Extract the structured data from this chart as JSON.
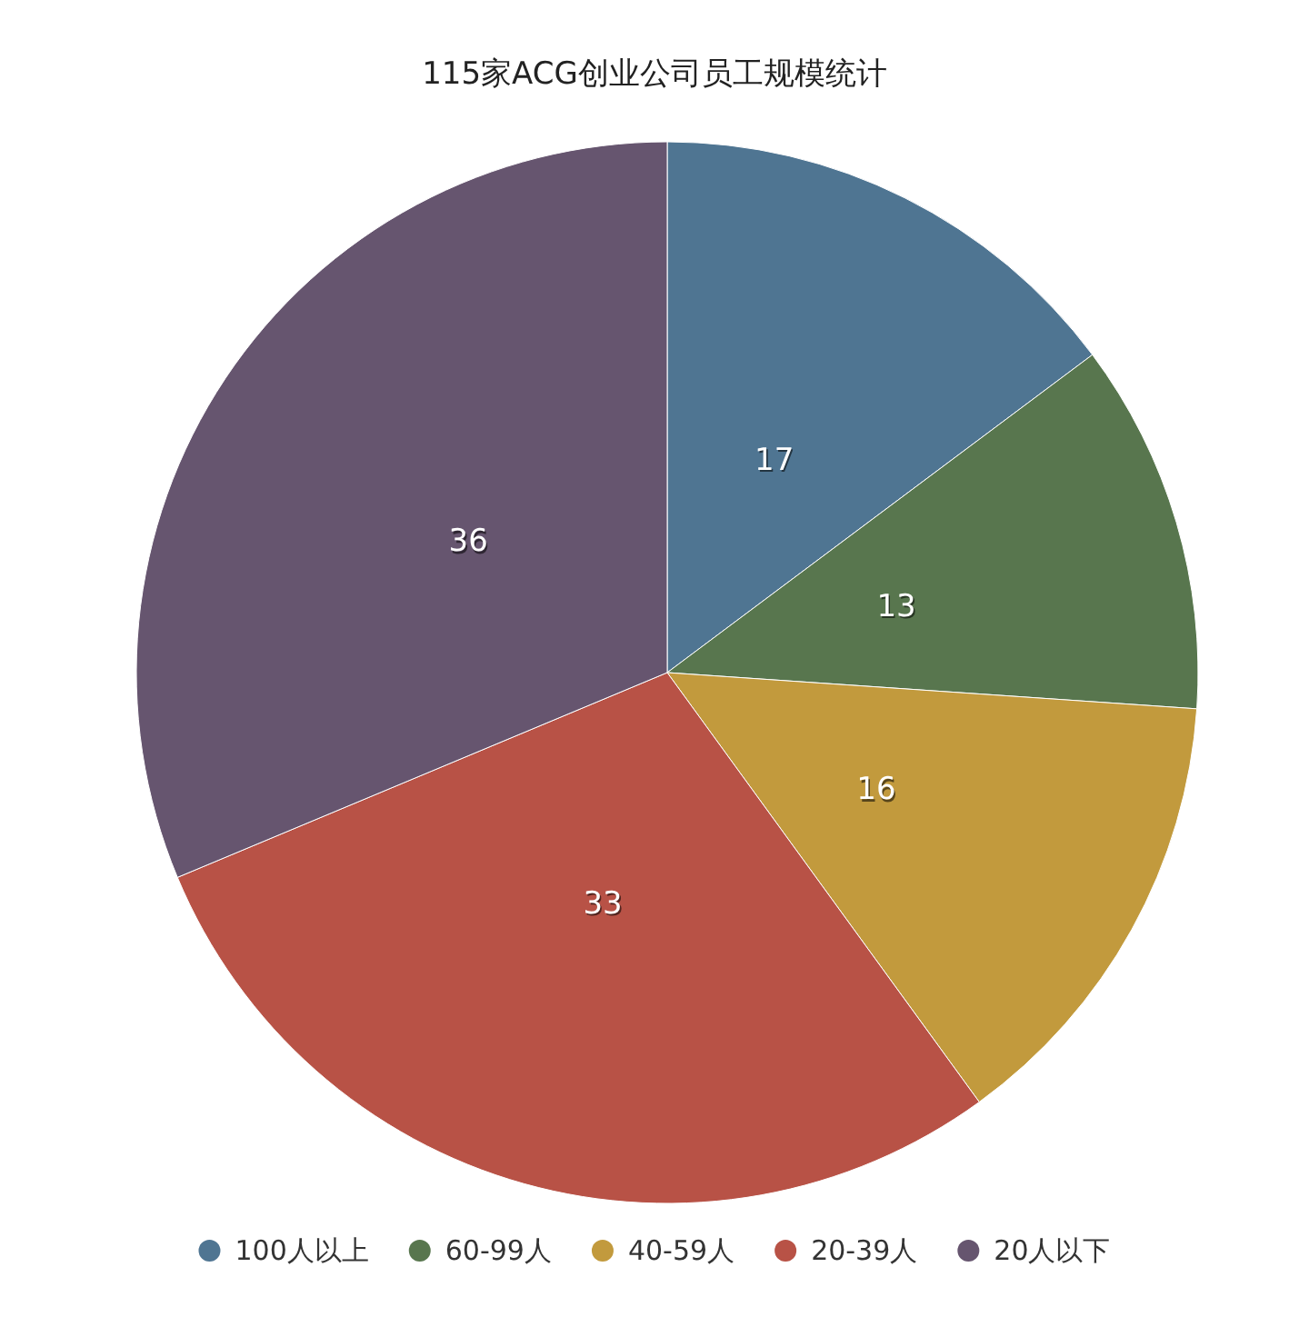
{
  "chart_data": {
    "type": "pie",
    "title": "115家ACG创业公司员工规模统计",
    "categories": [
      "100人以上",
      "60-99人",
      "40-59人",
      "20-39人",
      "20人以下"
    ],
    "values": [
      17,
      13,
      16,
      33,
      36
    ],
    "colors": [
      "#4f7592",
      "#58764e",
      "#c29a3d",
      "#b85246",
      "#66556f"
    ],
    "data_labels": true,
    "legend": "bottom"
  }
}
